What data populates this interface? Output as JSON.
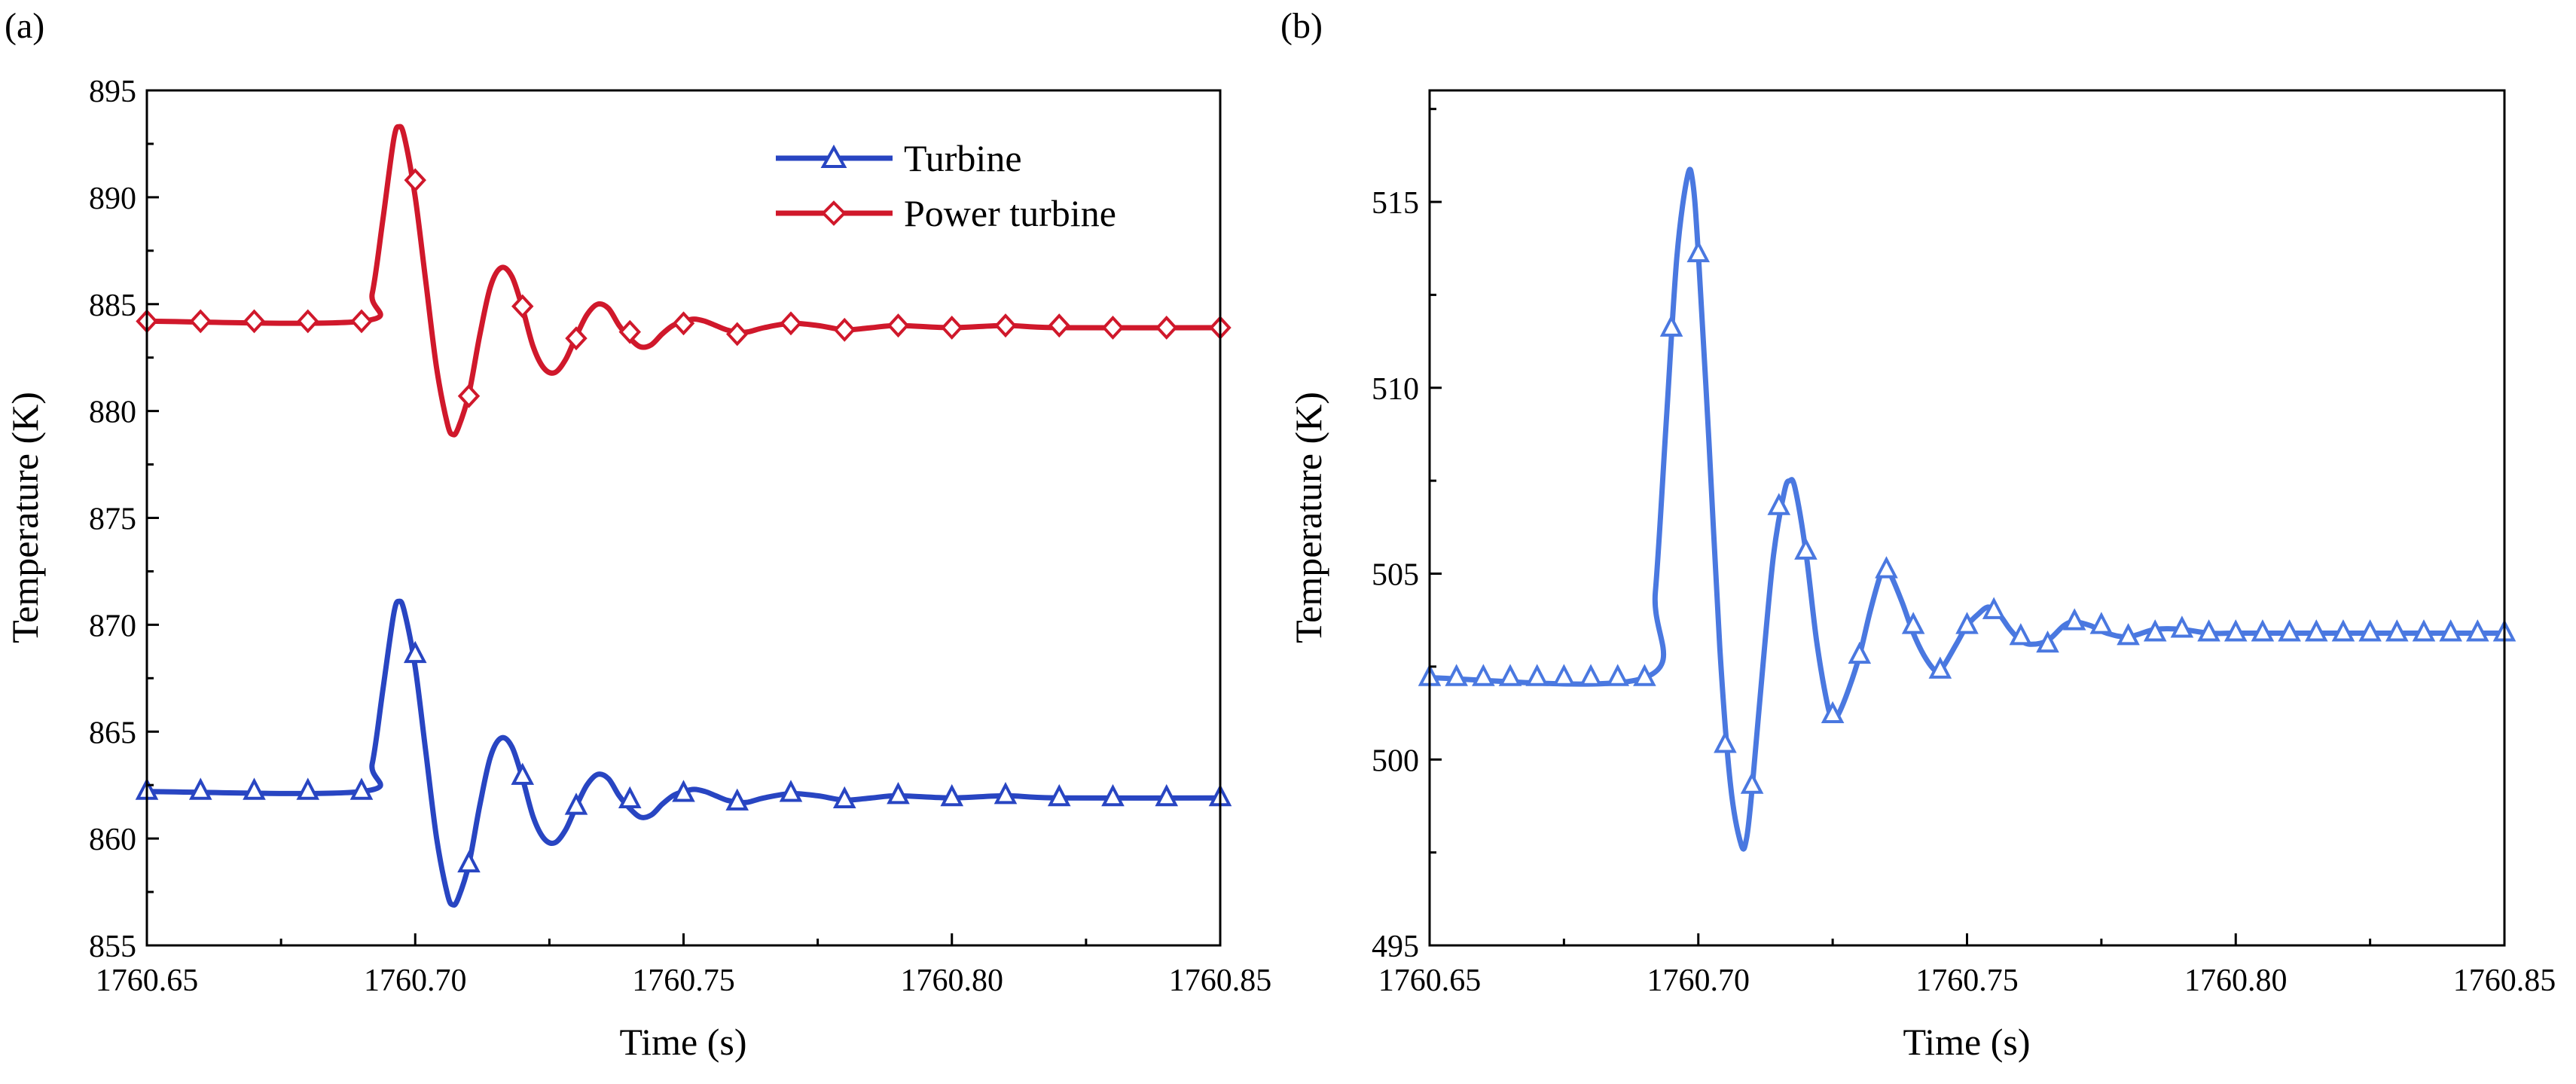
{
  "chart_data": [
    {
      "panel_label": "(a)",
      "type": "line",
      "xlabel": "Time (s)",
      "ylabel": "Temperature (K)",
      "xlim": [
        1760.65,
        1760.85
      ],
      "ylim": [
        855,
        895
      ],
      "xticks": [
        1760.65,
        1760.7,
        1760.75,
        1760.8,
        1760.85
      ],
      "xtick_labels": [
        "1760.65",
        "1760.70",
        "1760.75",
        "1760.80",
        "1760.85"
      ],
      "yticks": [
        855,
        860,
        865,
        870,
        875,
        880,
        885,
        890,
        895
      ],
      "ytick_labels": [
        "855",
        "860",
        "865",
        "870",
        "875",
        "880",
        "885",
        "890",
        "895"
      ],
      "legend_position": "top-right",
      "series": [
        {
          "name": "Turbine",
          "color": "#2845C2",
          "marker": "triangle",
          "curve": [
            [
              1760.65,
              862.2
            ],
            [
              1760.69,
              862.2
            ],
            [
              1760.692,
              863.5
            ],
            [
              1760.694,
              867.0
            ],
            [
              1760.696,
              870.5
            ],
            [
              1760.697,
              871.1
            ],
            [
              1760.698,
              870.6
            ],
            [
              1760.7,
              868.0
            ],
            [
              1760.702,
              864.0
            ],
            [
              1760.704,
              860.0
            ],
            [
              1760.706,
              857.4
            ],
            [
              1760.707,
              856.9
            ],
            [
              1760.708,
              857.2
            ],
            [
              1760.71,
              858.8
            ],
            [
              1760.712,
              861.5
            ],
            [
              1760.714,
              863.8
            ],
            [
              1760.716,
              864.7
            ],
            [
              1760.718,
              864.3
            ],
            [
              1760.72,
              862.8
            ],
            [
              1760.722,
              861.0
            ],
            [
              1760.724,
              860.0
            ],
            [
              1760.726,
              859.8
            ],
            [
              1760.728,
              860.4
            ],
            [
              1760.73,
              861.5
            ],
            [
              1760.732,
              862.5
            ],
            [
              1760.734,
              863.0
            ],
            [
              1760.736,
              862.8
            ],
            [
              1760.738,
              862.0
            ],
            [
              1760.74,
              861.4
            ],
            [
              1760.742,
              861.0
            ],
            [
              1760.744,
              861.1
            ],
            [
              1760.746,
              861.6
            ],
            [
              1760.748,
              862.0
            ],
            [
              1760.75,
              862.2
            ],
            [
              1760.752,
              862.3
            ],
            [
              1760.754,
              862.2
            ],
            [
              1760.756,
              862.0
            ],
            [
              1760.758,
              861.8
            ],
            [
              1760.76,
              861.7
            ],
            [
              1760.762,
              861.7
            ],
            [
              1760.765,
              861.9
            ],
            [
              1760.77,
              862.1
            ],
            [
              1760.775,
              862.0
            ],
            [
              1760.78,
              861.8
            ],
            [
              1760.785,
              861.9
            ],
            [
              1760.79,
              862.0
            ],
            [
              1760.8,
              861.9
            ],
            [
              1760.81,
              862.0
            ],
            [
              1760.82,
              861.9
            ],
            [
              1760.85,
              861.9
            ]
          ],
          "markers": [
            [
              1760.65,
              862.2
            ],
            [
              1760.66,
              862.2
            ],
            [
              1760.67,
              862.2
            ],
            [
              1760.68,
              862.2
            ],
            [
              1760.69,
              862.2
            ],
            [
              1760.7,
              868.6
            ],
            [
              1760.71,
              858.8
            ],
            [
              1760.72,
              862.9
            ],
            [
              1760.73,
              861.5
            ],
            [
              1760.74,
              861.8
            ],
            [
              1760.75,
              862.1
            ],
            [
              1760.76,
              861.7
            ],
            [
              1760.77,
              862.1
            ],
            [
              1760.78,
              861.8
            ],
            [
              1760.79,
              862.0
            ],
            [
              1760.8,
              861.9
            ],
            [
              1760.81,
              862.0
            ],
            [
              1760.82,
              861.9
            ],
            [
              1760.83,
              861.9
            ],
            [
              1760.84,
              861.9
            ],
            [
              1760.85,
              861.9
            ]
          ]
        },
        {
          "name": "Power turbine",
          "color": "#D0182B",
          "marker": "diamond",
          "curve": [
            [
              1760.65,
              884.2
            ],
            [
              1760.69,
              884.2
            ],
            [
              1760.692,
              885.5
            ],
            [
              1760.694,
              889.0
            ],
            [
              1760.696,
              892.7
            ],
            [
              1760.697,
              893.3
            ],
            [
              1760.698,
              892.8
            ],
            [
              1760.7,
              890.0
            ],
            [
              1760.702,
              886.0
            ],
            [
              1760.704,
              882.0
            ],
            [
              1760.706,
              879.4
            ],
            [
              1760.707,
              878.9
            ],
            [
              1760.708,
              879.2
            ],
            [
              1760.71,
              880.8
            ],
            [
              1760.712,
              883.5
            ],
            [
              1760.714,
              885.8
            ],
            [
              1760.716,
              886.7
            ],
            [
              1760.718,
              886.3
            ],
            [
              1760.72,
              884.8
            ],
            [
              1760.722,
              883.0
            ],
            [
              1760.724,
              882.0
            ],
            [
              1760.726,
              881.8
            ],
            [
              1760.728,
              882.4
            ],
            [
              1760.73,
              883.5
            ],
            [
              1760.732,
              884.5
            ],
            [
              1760.734,
              885.0
            ],
            [
              1760.736,
              884.8
            ],
            [
              1760.738,
              884.0
            ],
            [
              1760.74,
              883.4
            ],
            [
              1760.742,
              883.0
            ],
            [
              1760.744,
              883.1
            ],
            [
              1760.746,
              883.6
            ],
            [
              1760.748,
              884.0
            ],
            [
              1760.75,
              884.2
            ],
            [
              1760.752,
              884.3
            ],
            [
              1760.754,
              884.2
            ],
            [
              1760.756,
              884.0
            ],
            [
              1760.758,
              883.8
            ],
            [
              1760.76,
              883.7
            ],
            [
              1760.762,
              883.7
            ],
            [
              1760.765,
              883.9
            ],
            [
              1760.77,
              884.1
            ],
            [
              1760.775,
              884.0
            ],
            [
              1760.78,
              883.8
            ],
            [
              1760.785,
              883.9
            ],
            [
              1760.79,
              884.0
            ],
            [
              1760.8,
              883.9
            ],
            [
              1760.81,
              884.0
            ],
            [
              1760.82,
              883.9
            ],
            [
              1760.85,
              883.9
            ]
          ],
          "markers": [
            [
              1760.65,
              884.2
            ],
            [
              1760.66,
              884.2
            ],
            [
              1760.67,
              884.2
            ],
            [
              1760.68,
              884.2
            ],
            [
              1760.69,
              884.2
            ],
            [
              1760.7,
              890.8
            ],
            [
              1760.71,
              880.7
            ],
            [
              1760.72,
              884.9
            ],
            [
              1760.73,
              883.4
            ],
            [
              1760.74,
              883.7
            ],
            [
              1760.75,
              884.1
            ],
            [
              1760.76,
              883.6
            ],
            [
              1760.77,
              884.1
            ],
            [
              1760.78,
              883.8
            ],
            [
              1760.79,
              884.0
            ],
            [
              1760.8,
              883.9
            ],
            [
              1760.81,
              884.0
            ],
            [
              1760.82,
              884.0
            ],
            [
              1760.83,
              883.9
            ],
            [
              1760.84,
              883.9
            ],
            [
              1760.85,
              883.9
            ]
          ]
        }
      ]
    },
    {
      "panel_label": "(b)",
      "type": "line",
      "xlabel": "Time (s)",
      "ylabel": "Temperature (K)",
      "xlim": [
        1760.65,
        1760.85
      ],
      "ylim": [
        495,
        518
      ],
      "xticks": [
        1760.65,
        1760.7,
        1760.75,
        1760.8,
        1760.85
      ],
      "xtick_labels": [
        "1760.65",
        "1760.70",
        "1760.75",
        "1760.80",
        "1760.85"
      ],
      "yticks": [
        495,
        500,
        505,
        510,
        515
      ],
      "ytick_labels": [
        "495",
        "500",
        "505",
        "510",
        "515"
      ],
      "series": [
        {
          "name": "",
          "color": "#4A78E0",
          "marker": "triangle",
          "curve": [
            [
              1760.65,
              502.2
            ],
            [
              1760.69,
              502.2
            ],
            [
              1760.692,
              504.5
            ],
            [
              1760.694,
              509.0
            ],
            [
              1760.696,
              513.5
            ],
            [
              1760.698,
              515.7
            ],
            [
              1760.699,
              515.5
            ],
            [
              1760.7,
              513.6
            ],
            [
              1760.702,
              508.5
            ],
            [
              1760.704,
              503.0
            ],
            [
              1760.706,
              499.3
            ],
            [
              1760.708,
              497.7
            ],
            [
              1760.709,
              497.9
            ],
            [
              1760.71,
              499.2
            ],
            [
              1760.712,
              502.5
            ],
            [
              1760.714,
              505.5
            ],
            [
              1760.716,
              507.2
            ],
            [
              1760.717,
              507.5
            ],
            [
              1760.718,
              507.3
            ],
            [
              1760.72,
              505.6
            ],
            [
              1760.722,
              503.2
            ],
            [
              1760.724,
              501.5
            ],
            [
              1760.725,
              501.1
            ],
            [
              1760.726,
              501.2
            ],
            [
              1760.728,
              501.9
            ],
            [
              1760.73,
              502.8
            ],
            [
              1760.732,
              504.0
            ],
            [
              1760.734,
              505.0
            ],
            [
              1760.735,
              505.1
            ],
            [
              1760.736,
              504.9
            ],
            [
              1760.738,
              504.2
            ],
            [
              1760.74,
              503.4
            ],
            [
              1760.742,
              502.8
            ],
            [
              1760.744,
              502.4
            ],
            [
              1760.745,
              502.4
            ],
            [
              1760.746,
              502.6
            ],
            [
              1760.748,
              503.1
            ],
            [
              1760.75,
              503.6
            ],
            [
              1760.752,
              503.9
            ],
            [
              1760.754,
              504.1
            ],
            [
              1760.756,
              503.9
            ],
            [
              1760.758,
              503.5
            ],
            [
              1760.76,
              503.2
            ],
            [
              1760.762,
              503.1
            ],
            [
              1760.765,
              503.2
            ],
            [
              1760.768,
              503.6
            ],
            [
              1760.77,
              503.7
            ],
            [
              1760.773,
              503.6
            ],
            [
              1760.776,
              503.4
            ],
            [
              1760.78,
              503.3
            ],
            [
              1760.785,
              503.5
            ],
            [
              1760.79,
              503.5
            ],
            [
              1760.795,
              503.4
            ],
            [
              1760.8,
              503.4
            ],
            [
              1760.81,
              503.4
            ],
            [
              1760.85,
              503.4
            ]
          ],
          "markers": [
            [
              1760.65,
              502.2
            ],
            [
              1760.655,
              502.2
            ],
            [
              1760.66,
              502.2
            ],
            [
              1760.665,
              502.2
            ],
            [
              1760.67,
              502.2
            ],
            [
              1760.675,
              502.2
            ],
            [
              1760.68,
              502.2
            ],
            [
              1760.685,
              502.2
            ],
            [
              1760.69,
              502.2
            ],
            [
              1760.695,
              511.6
            ],
            [
              1760.7,
              513.6
            ],
            [
              1760.705,
              500.4
            ],
            [
              1760.71,
              499.3
            ],
            [
              1760.715,
              506.8
            ],
            [
              1760.72,
              505.6
            ],
            [
              1760.725,
              501.2
            ],
            [
              1760.73,
              502.8
            ],
            [
              1760.735,
              505.1
            ],
            [
              1760.74,
              503.6
            ],
            [
              1760.745,
              502.4
            ],
            [
              1760.75,
              503.6
            ],
            [
              1760.755,
              504.0
            ],
            [
              1760.76,
              503.3
            ],
            [
              1760.765,
              503.1
            ],
            [
              1760.77,
              503.7
            ],
            [
              1760.775,
              503.6
            ],
            [
              1760.78,
              503.3
            ],
            [
              1760.785,
              503.4
            ],
            [
              1760.79,
              503.5
            ],
            [
              1760.795,
              503.4
            ],
            [
              1760.8,
              503.4
            ],
            [
              1760.805,
              503.4
            ],
            [
              1760.81,
              503.4
            ],
            [
              1760.815,
              503.4
            ],
            [
              1760.82,
              503.4
            ],
            [
              1760.825,
              503.4
            ],
            [
              1760.83,
              503.4
            ],
            [
              1760.835,
              503.4
            ],
            [
              1760.84,
              503.4
            ],
            [
              1760.845,
              503.4
            ],
            [
              1760.85,
              503.4
            ]
          ]
        }
      ]
    }
  ]
}
